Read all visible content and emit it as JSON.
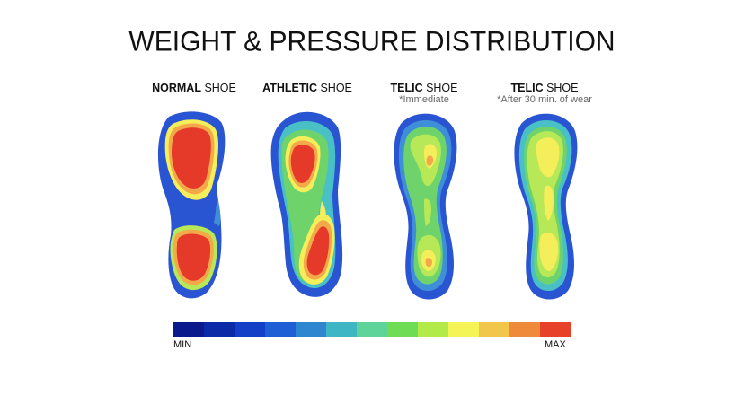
{
  "title": "WEIGHT & PRESSURE DISTRIBUTION",
  "columns": [
    {
      "bold": "NORMAL",
      "rest": " SHOE",
      "note": ""
    },
    {
      "bold": "ATHLETIC",
      "rest": " SHOE",
      "note": ""
    },
    {
      "bold": "TELIC",
      "rest": " SHOE",
      "note": "*Immediate"
    },
    {
      "bold": "TELIC",
      "rest": " SHOE",
      "note": "*After 30 min. of wear"
    }
  ],
  "scale": {
    "min_label": "MIN",
    "max_label": "MAX",
    "colors": [
      "#0a1a8c",
      "#0b2aa8",
      "#1440c8",
      "#1f5fd6",
      "#2f86d0",
      "#3fb6c4",
      "#5fd49a",
      "#6fdc55",
      "#b2ea4a",
      "#f4f456",
      "#f2c64a",
      "#ef8a3a",
      "#e8412a"
    ]
  },
  "palette": {
    "blue": "#2a55d2",
    "lightblue": "#3f8fd8",
    "cyan": "#49c0c6",
    "green": "#6ed36a",
    "lime": "#b6e857",
    "yellow": "#f3ee5a",
    "orange": "#f3a84a",
    "red": "#e53a2a"
  }
}
